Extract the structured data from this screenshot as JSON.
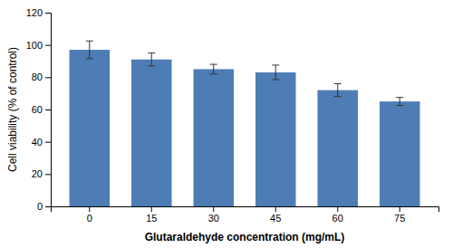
{
  "chart_data": {
    "type": "bar",
    "categories": [
      "0",
      "15",
      "30",
      "45",
      "60",
      "75"
    ],
    "values": [
      97.0,
      91.0,
      85.0,
      83.0,
      72.0,
      65.0
    ],
    "errors": [
      5.5,
      4.0,
      3.0,
      4.5,
      4.0,
      2.5
    ],
    "color": "#4e7db5",
    "xlabel": "Glutaraldehyde concentration (mg/mL)",
    "ylabel": "Cell viability (% of control)",
    "ylim": [
      0,
      120
    ],
    "yticks": [
      0,
      20,
      40,
      60,
      80,
      100,
      120
    ],
    "grid": false
  }
}
